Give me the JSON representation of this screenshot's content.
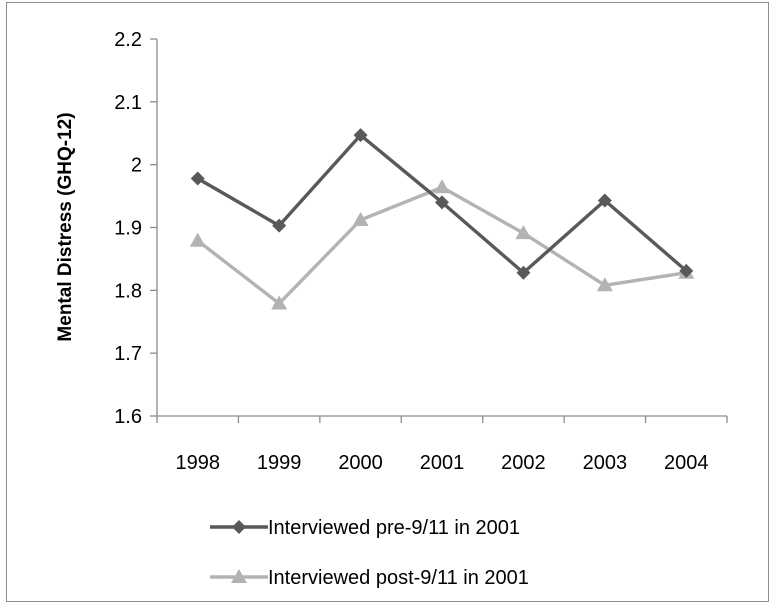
{
  "chart_data": {
    "type": "line",
    "title": "",
    "xlabel": "",
    "ylabel": "Mental Distress (GHQ-12)",
    "ylim": [
      1.6,
      2.2
    ],
    "yticks": [
      "1.6",
      "1.7",
      "1.8",
      "1.9",
      "2",
      "2.1",
      "2.2"
    ],
    "categories": [
      "1998",
      "1999",
      "2000",
      "2001",
      "2002",
      "2003",
      "2004"
    ],
    "grid": false,
    "legend_position": "bottom",
    "series": [
      {
        "name": "Interviewed pre-9/11 in 2001",
        "marker": "diamond",
        "color": "#595959",
        "values": [
          1.978,
          1.903,
          2.047,
          1.94,
          1.828,
          1.943,
          1.831
        ]
      },
      {
        "name": "Interviewed post-9/11 in 2001",
        "marker": "triangle",
        "color": "#b3b3b3",
        "values": [
          1.879,
          1.779,
          1.912,
          1.964,
          1.891,
          1.808,
          1.828
        ]
      }
    ]
  }
}
